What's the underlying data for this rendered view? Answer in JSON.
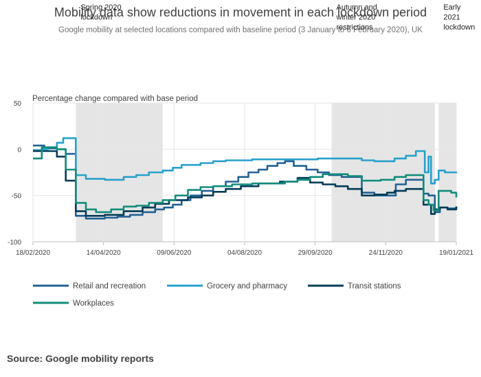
{
  "chart_data": {
    "type": "line",
    "title": "Mobility data show reductions in movement in each lockdown period",
    "subtitle": "Google mobility at selected locations compared with baseline period (3 January to 6 February 2020), UK",
    "ylabel": "Percentage change compared with base period",
    "ylim": [
      -100,
      50
    ],
    "yticks": [
      "50",
      "0",
      "-50",
      "-100"
    ],
    "xlim": [
      "2020-02-18",
      "2021-01-19"
    ],
    "xticks": [
      "18/02/2020",
      "14/04/2020",
      "09/06/2020",
      "04/08/2020",
      "29/09/2020",
      "24/11/2020",
      "19/01/2021"
    ],
    "grid": true,
    "legend_position": "bottom",
    "shaded_periods": [
      {
        "label": "Spring 2020 lockdown",
        "start": "2020-03-23",
        "end": "2020-05-31"
      },
      {
        "label": "Autumn and winter 2020 restrictions",
        "start": "2020-10-12",
        "end": "2021-01-02"
      },
      {
        "label": "Early 2021 lockdown",
        "start": "2021-01-05",
        "end": "2021-01-19"
      }
    ],
    "series": [
      {
        "name": "Retail and recreation",
        "color": "#206095",
        "points": [
          [
            "2020-02-18",
            4
          ],
          [
            "2020-02-25",
            4
          ],
          [
            "2020-02-27",
            1
          ],
          [
            "2020-03-08",
            0
          ],
          [
            "2020-03-15",
            -5
          ],
          [
            "2020-03-23",
            -72
          ],
          [
            "2020-03-31",
            -75
          ],
          [
            "2020-04-15",
            -74
          ],
          [
            "2020-04-25",
            -73
          ],
          [
            "2020-05-05",
            -71
          ],
          [
            "2020-05-15",
            -68
          ],
          [
            "2020-05-25",
            -65
          ],
          [
            "2020-06-01",
            -63
          ],
          [
            "2020-06-08",
            -60
          ],
          [
            "2020-06-15",
            -55
          ],
          [
            "2020-06-22",
            -50
          ],
          [
            "2020-07-01",
            -45
          ],
          [
            "2020-07-10",
            -40
          ],
          [
            "2020-07-20",
            -35
          ],
          [
            "2020-07-30",
            -30
          ],
          [
            "2020-08-07",
            -25
          ],
          [
            "2020-08-15",
            -22
          ],
          [
            "2020-08-22",
            -18
          ],
          [
            "2020-08-30",
            -15
          ],
          [
            "2020-09-05",
            -13
          ],
          [
            "2020-09-12",
            -18
          ],
          [
            "2020-09-22",
            -22
          ],
          [
            "2020-10-01",
            -25
          ],
          [
            "2020-10-10",
            -28
          ],
          [
            "2020-10-20",
            -30
          ],
          [
            "2020-10-31",
            -30
          ],
          [
            "2020-11-05",
            -47
          ],
          [
            "2020-11-15",
            -50
          ],
          [
            "2020-12-02",
            -38
          ],
          [
            "2020-12-10",
            -33
          ],
          [
            "2020-12-20",
            -33
          ],
          [
            "2020-12-24",
            -48
          ],
          [
            "2020-12-28",
            -50
          ],
          [
            "2021-01-02",
            -68
          ],
          [
            "2021-01-06",
            -63
          ],
          [
            "2021-01-12",
            -64
          ],
          [
            "2021-01-19",
            -62
          ]
        ]
      },
      {
        "name": "Grocery and pharmacy",
        "color": "#27a0cc",
        "points": [
          [
            "2020-02-18",
            -1
          ],
          [
            "2020-02-25",
            0
          ],
          [
            "2020-03-01",
            2
          ],
          [
            "2020-03-08",
            7
          ],
          [
            "2020-03-13",
            12
          ],
          [
            "2020-03-21",
            12
          ],
          [
            "2020-03-23",
            -28
          ],
          [
            "2020-03-31",
            -32
          ],
          [
            "2020-04-15",
            -33
          ],
          [
            "2020-04-30",
            -30
          ],
          [
            "2020-05-10",
            -28
          ],
          [
            "2020-05-20",
            -25
          ],
          [
            "2020-05-31",
            -23
          ],
          [
            "2020-06-08",
            -20
          ],
          [
            "2020-06-15",
            -17
          ],
          [
            "2020-06-30",
            -15
          ],
          [
            "2020-07-10",
            -13
          ],
          [
            "2020-07-20",
            -12
          ],
          [
            "2020-08-10",
            -11
          ],
          [
            "2020-09-10",
            -11
          ],
          [
            "2020-10-01",
            -10
          ],
          [
            "2020-10-20",
            -10
          ],
          [
            "2020-11-05",
            -12
          ],
          [
            "2020-11-15",
            -13
          ],
          [
            "2020-12-01",
            -10
          ],
          [
            "2020-12-10",
            -7
          ],
          [
            "2020-12-18",
            -2
          ],
          [
            "2020-12-23",
            -2
          ],
          [
            "2020-12-25",
            -25
          ],
          [
            "2020-12-28",
            -8
          ],
          [
            "2020-12-30",
            -37
          ],
          [
            "2021-01-02",
            -33
          ],
          [
            "2021-01-05",
            -23
          ],
          [
            "2021-01-10",
            -25
          ],
          [
            "2021-01-19",
            -26
          ]
        ]
      },
      {
        "name": "Transit stations",
        "color": "#003c57",
        "points": [
          [
            "2020-02-18",
            -2
          ],
          [
            "2020-02-25",
            -2
          ],
          [
            "2020-03-01",
            -2
          ],
          [
            "2020-03-08",
            -8
          ],
          [
            "2020-03-15",
            -34
          ],
          [
            "2020-03-23",
            -67
          ],
          [
            "2020-03-31",
            -72
          ],
          [
            "2020-04-15",
            -71
          ],
          [
            "2020-04-30",
            -67
          ],
          [
            "2020-05-15",
            -63
          ],
          [
            "2020-05-25",
            -59
          ],
          [
            "2020-06-05",
            -55
          ],
          [
            "2020-06-20",
            -52
          ],
          [
            "2020-07-01",
            -50
          ],
          [
            "2020-07-10",
            -46
          ],
          [
            "2020-07-20",
            -43
          ],
          [
            "2020-08-01",
            -40
          ],
          [
            "2020-08-15",
            -37
          ],
          [
            "2020-09-01",
            -35
          ],
          [
            "2020-09-15",
            -31
          ],
          [
            "2020-09-25",
            -36
          ],
          [
            "2020-10-05",
            -38
          ],
          [
            "2020-10-15",
            -40
          ],
          [
            "2020-10-25",
            -43
          ],
          [
            "2020-11-05",
            -50
          ],
          [
            "2020-11-15",
            -49
          ],
          [
            "2020-11-25",
            -47
          ],
          [
            "2020-12-01",
            -45
          ],
          [
            "2020-12-10",
            -43
          ],
          [
            "2020-12-20",
            -43
          ],
          [
            "2020-12-24",
            -60
          ],
          [
            "2020-12-30",
            -70
          ],
          [
            "2021-01-02",
            -65
          ],
          [
            "2021-01-06",
            -63
          ],
          [
            "2021-01-12",
            -65
          ],
          [
            "2021-01-19",
            -62
          ]
        ]
      },
      {
        "name": "Workplaces",
        "color": "#118c7b",
        "points": [
          [
            "2020-02-18",
            -10
          ],
          [
            "2020-02-22",
            -10
          ],
          [
            "2020-02-25",
            2
          ],
          [
            "2020-03-08",
            0
          ],
          [
            "2020-03-15",
            -22
          ],
          [
            "2020-03-23",
            -58
          ],
          [
            "2020-03-31",
            -65
          ],
          [
            "2020-04-08",
            -68
          ],
          [
            "2020-04-20",
            -65
          ],
          [
            "2020-04-30",
            -62
          ],
          [
            "2020-05-10",
            -61
          ],
          [
            "2020-05-20",
            -58
          ],
          [
            "2020-05-31",
            -55
          ],
          [
            "2020-06-10",
            -50
          ],
          [
            "2020-06-20",
            -44
          ],
          [
            "2020-06-30",
            -41
          ],
          [
            "2020-07-10",
            -40
          ],
          [
            "2020-07-25",
            -38
          ],
          [
            "2020-08-10",
            -37
          ],
          [
            "2020-08-25",
            -37
          ],
          [
            "2020-09-05",
            -35
          ],
          [
            "2020-09-15",
            -33
          ],
          [
            "2020-09-25",
            -30
          ],
          [
            "2020-10-05",
            -27
          ],
          [
            "2020-10-15",
            -27
          ],
          [
            "2020-10-25",
            -29
          ],
          [
            "2020-11-05",
            -34
          ],
          [
            "2020-11-20",
            -33
          ],
          [
            "2020-12-01",
            -30
          ],
          [
            "2020-12-10",
            -28
          ],
          [
            "2020-12-20",
            -28
          ],
          [
            "2020-12-24",
            -55
          ],
          [
            "2020-12-28",
            -60
          ],
          [
            "2021-01-01",
            -66
          ],
          [
            "2021-01-05",
            -45
          ],
          [
            "2021-01-15",
            -47
          ],
          [
            "2021-01-19",
            -52
          ]
        ]
      }
    ]
  },
  "source_note": "Source: Google mobility reports"
}
